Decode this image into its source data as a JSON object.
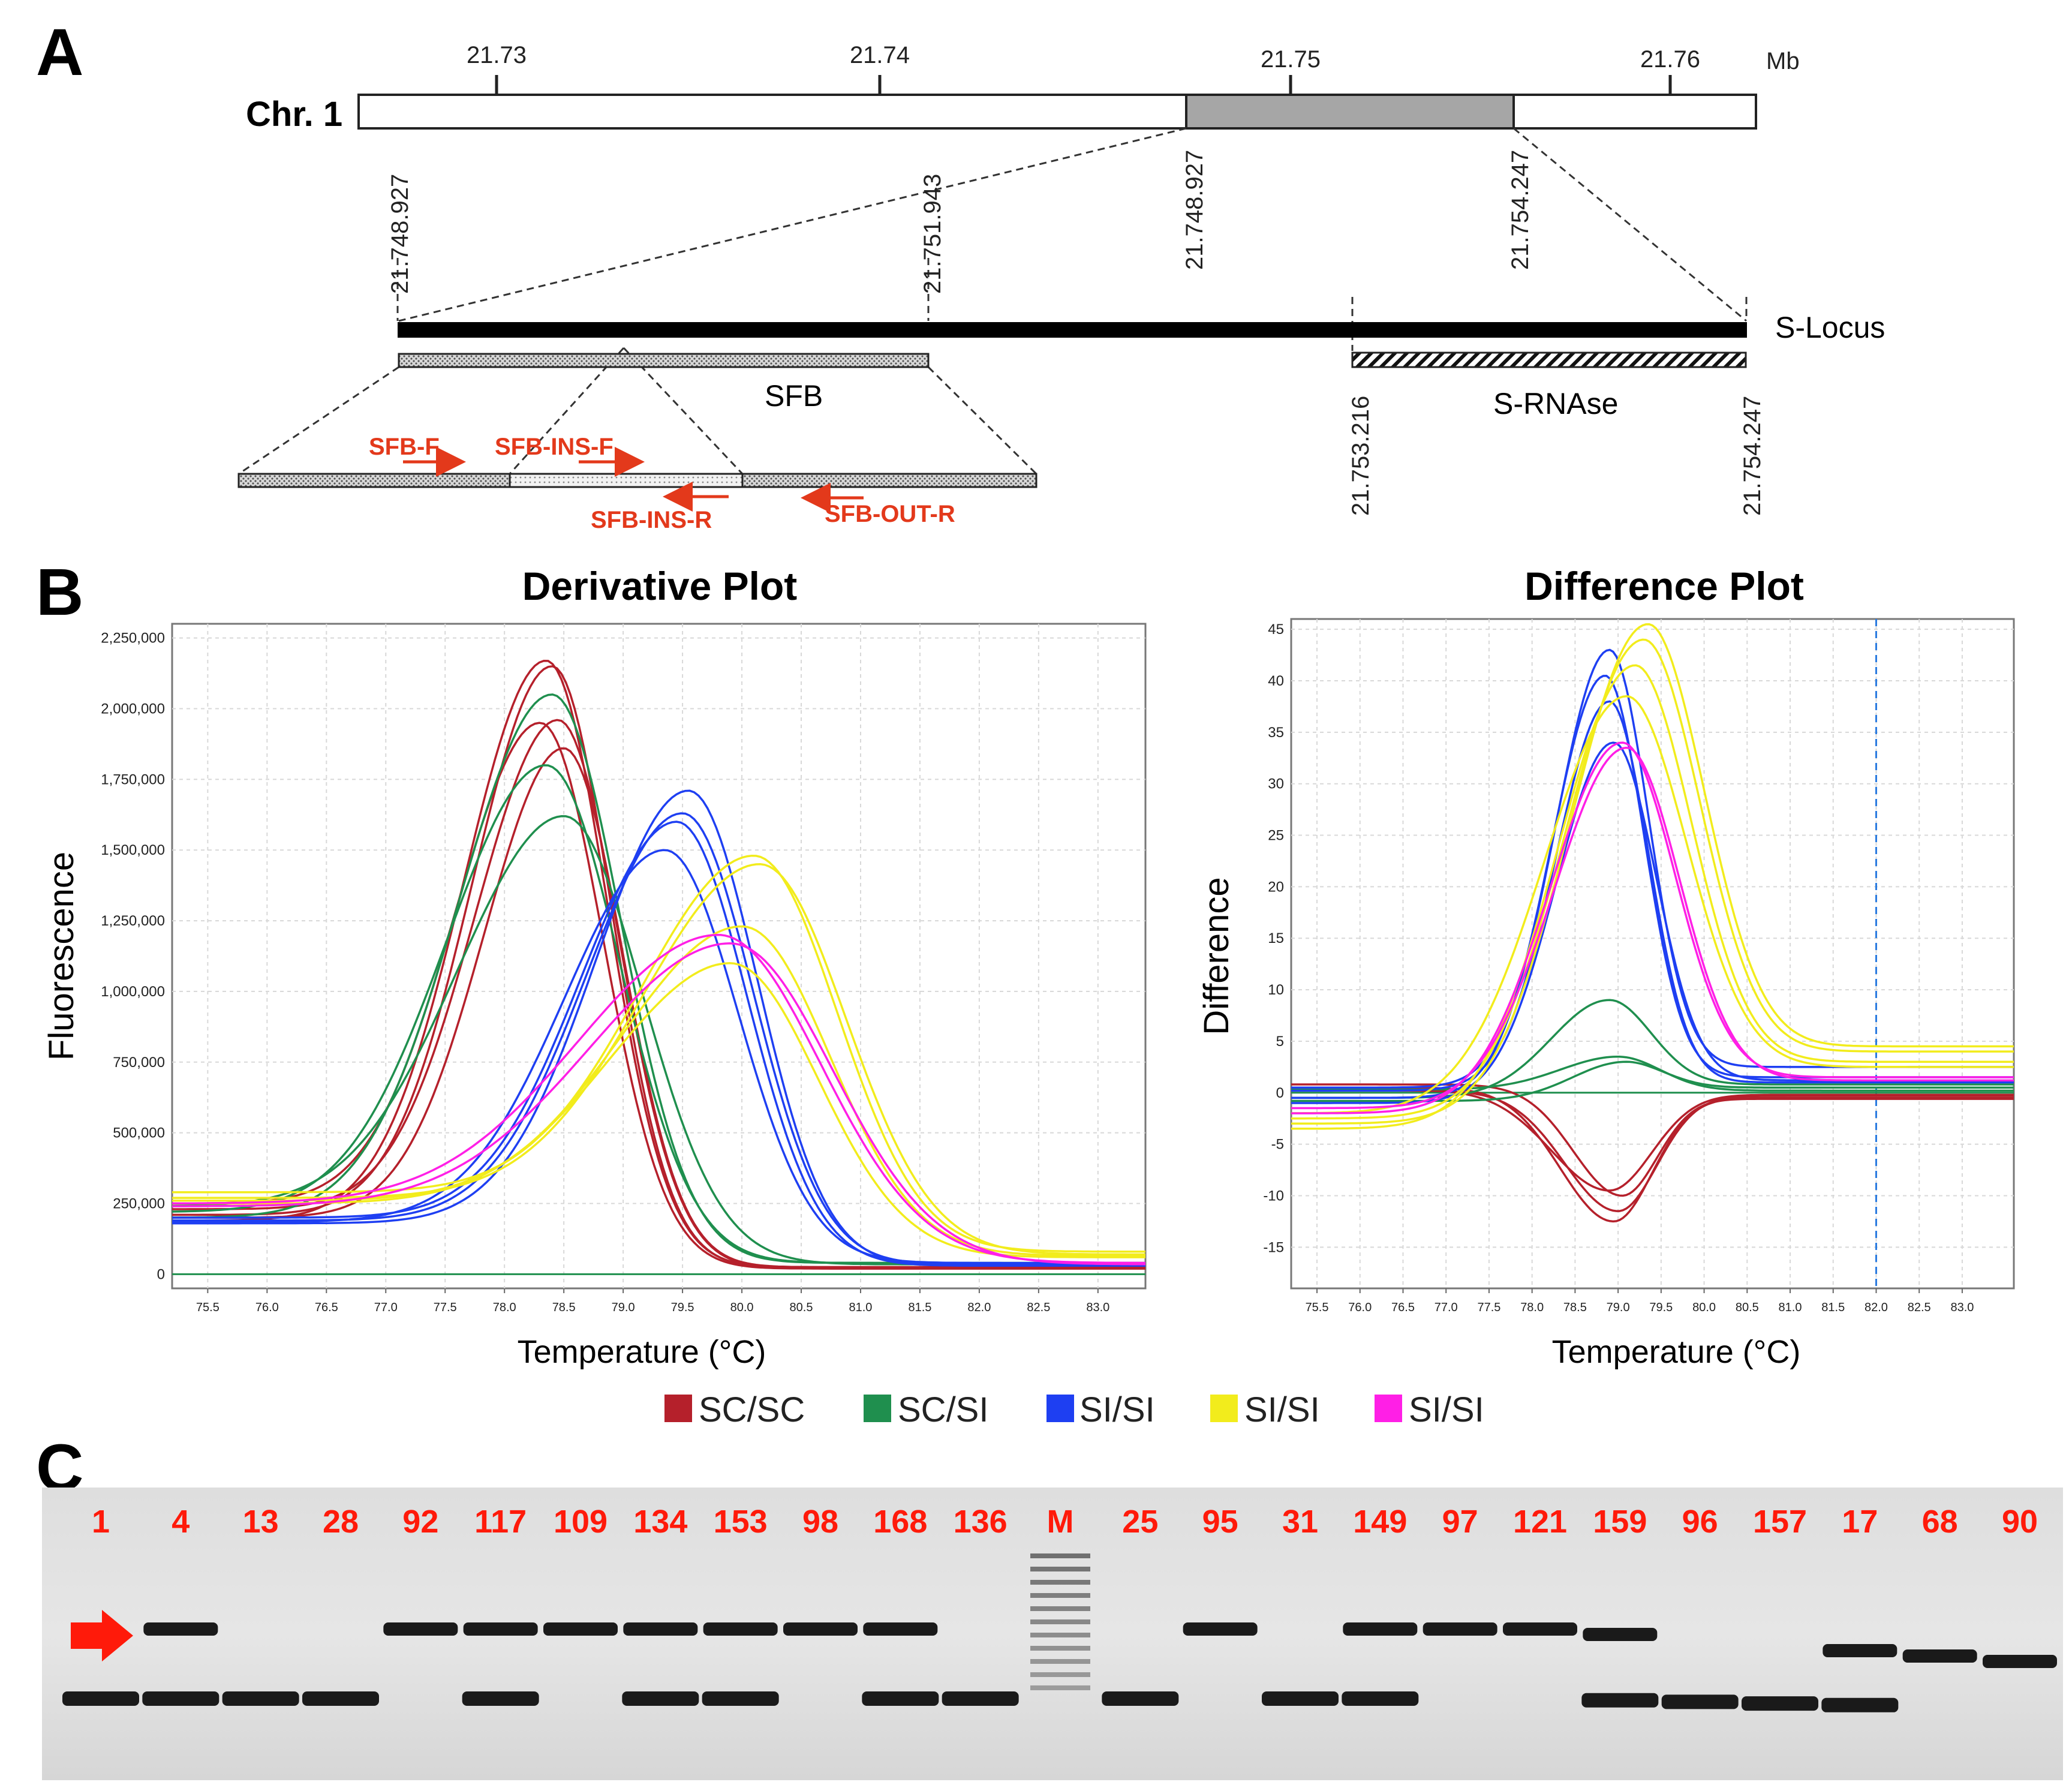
{
  "panel_a": {
    "letter": "A",
    "chromosome_label": "Chr. 1",
    "unit": "Mb",
    "ticks": [
      "21.73",
      "21.74",
      "21.75",
      "21.76"
    ],
    "region_start": "21.748.927",
    "region_end": "21.754.247",
    "locus_start": "21.748.927",
    "sfb_end": "21.751.943",
    "srnase_start": "21.753.216",
    "srnase_end": "21.754.247",
    "locus_label": "S-Locus",
    "sfb_label": "SFB",
    "srnase_label": "S-RNAse",
    "primers": [
      "SFB-F",
      "SFB-INS-F",
      "SFB-INS-R",
      "SFB-OUT-R"
    ]
  },
  "panel_b": {
    "letter": "B",
    "legend": [
      {
        "label": "SC/SC",
        "color": "#b5202b"
      },
      {
        "label": "SC/SI",
        "color": "#1f8f4e"
      },
      {
        "label": "SI/SI",
        "color": "#1e3ff2"
      },
      {
        "label": "SI/SI",
        "color": "#f2ec1c"
      },
      {
        "label": "SI/SI",
        "color": "#ff1fe6"
      }
    ]
  },
  "panel_c": {
    "letter": "C",
    "marker_color": "#ff1a0a",
    "lanes": [
      "1",
      "4",
      "13",
      "28",
      "92",
      "117",
      "109",
      "134",
      "153",
      "98",
      "168",
      "136",
      "M",
      "25",
      "95",
      "31",
      "149",
      "97",
      "121",
      "159",
      "96",
      "157",
      "17",
      "68",
      "90"
    ],
    "upper_band_lanes": [
      "4",
      "92",
      "117",
      "109",
      "134",
      "153",
      "98",
      "168",
      "95",
      "149",
      "97",
      "121",
      "159",
      "17",
      "68",
      "90"
    ],
    "lower_band_lanes": [
      "1",
      "4",
      "13",
      "28",
      "117",
      "134",
      "153",
      "168",
      "136",
      "25",
      "31",
      "149",
      "159",
      "96",
      "157",
      "17"
    ]
  },
  "chart_data": [
    {
      "type": "line",
      "title": "Derivative Plot",
      "xlabel": "Temperature (°C)",
      "ylabel": "Fluorescence",
      "xlim": [
        75.2,
        83.4
      ],
      "ylim": [
        -50000,
        2300000
      ],
      "x_ticks": [
        "75.5",
        "76.0",
        "76.5",
        "77.0",
        "77.5",
        "78.0",
        "78.5",
        "79.0",
        "79.5",
        "80.0",
        "80.5",
        "81.0",
        "81.5",
        "82.0",
        "82.5",
        "83.0"
      ],
      "y_ticks": [
        "0",
        "250,000",
        "500,000",
        "750,000",
        "1,000,000",
        "1,250,000",
        "1,500,000",
        "1,750,000",
        "2,000,000",
        "2,250,000"
      ],
      "series": [
        {
          "name": "SC/SC",
          "color": "#b5202b",
          "curves": [
            {
              "peak_x": 78.35,
              "peak_y": 2170000,
              "baseline": 190000,
              "width": 0.62,
              "tail": 25000
            },
            {
              "peak_x": 78.4,
              "peak_y": 2150000,
              "baseline": 210000,
              "width": 0.6,
              "tail": 25000
            },
            {
              "peak_x": 78.45,
              "peak_y": 1960000,
              "baseline": 230000,
              "width": 0.62,
              "tail": 20000
            },
            {
              "peak_x": 78.3,
              "peak_y": 1950000,
              "baseline": 250000,
              "width": 0.64,
              "tail": 20000
            },
            {
              "peak_x": 78.5,
              "peak_y": 1860000,
              "baseline": 200000,
              "width": 0.6,
              "tail": 25000
            }
          ]
        },
        {
          "name": "SC/SI",
          "color": "#1f8f4e",
          "curves": [
            {
              "peak_x": 78.4,
              "peak_y": 2050000,
              "baseline": 200000,
              "width": 0.7,
              "tail": 40000
            },
            {
              "peak_x": 78.35,
              "peak_y": 1800000,
              "baseline": 220000,
              "width": 0.75,
              "tail": 40000
            },
            {
              "peak_x": 78.5,
              "peak_y": 1620000,
              "baseline": 240000,
              "width": 0.8,
              "tail": 35000
            }
          ]
        },
        {
          "name": "SI/SI",
          "color": "#1e3ff2",
          "curves": [
            {
              "peak_x": 79.55,
              "peak_y": 1710000,
              "baseline": 180000,
              "width": 0.7,
              "tail": 30000
            },
            {
              "peak_x": 79.5,
              "peak_y": 1630000,
              "baseline": 190000,
              "width": 0.72,
              "tail": 35000
            },
            {
              "peak_x": 79.45,
              "peak_y": 1600000,
              "baseline": 200000,
              "width": 0.72,
              "tail": 30000
            },
            {
              "peak_x": 79.35,
              "peak_y": 1500000,
              "baseline": 185000,
              "width": 0.75,
              "tail": 40000
            }
          ]
        },
        {
          "name": "SI/SI",
          "color": "#f2ec1c",
          "curves": [
            {
              "peak_x": 80.1,
              "peak_y": 1480000,
              "baseline": 290000,
              "width": 0.85,
              "tail": 80000
            },
            {
              "peak_x": 80.15,
              "peak_y": 1450000,
              "baseline": 270000,
              "width": 0.88,
              "tail": 70000
            },
            {
              "peak_x": 80.0,
              "peak_y": 1230000,
              "baseline": 260000,
              "width": 0.9,
              "tail": 65000
            },
            {
              "peak_x": 79.9,
              "peak_y": 1100000,
              "baseline": 250000,
              "width": 0.9,
              "tail": 60000
            }
          ]
        },
        {
          "name": "SI/SI",
          "color": "#ff1fe6",
          "curves": [
            {
              "peak_x": 79.8,
              "peak_y": 1200000,
              "baseline": 250000,
              "width": 1.05,
              "tail": 40000
            },
            {
              "peak_x": 79.9,
              "peak_y": 1170000,
              "baseline": 240000,
              "width": 1.05,
              "tail": 35000
            }
          ]
        }
      ]
    },
    {
      "type": "line",
      "title": "Difference Plot",
      "xlabel": "Temperature (°C)",
      "ylabel": "Difference",
      "xlim": [
        75.2,
        83.6
      ],
      "ylim": [
        -19,
        46
      ],
      "reference_line_x": 82.0,
      "x_ticks": [
        "75.5",
        "76.0",
        "76.5",
        "77.0",
        "77.5",
        "78.0",
        "78.5",
        "79.0",
        "79.5",
        "80.0",
        "80.5",
        "81.0",
        "81.5",
        "82.0",
        "82.5",
        "83.0"
      ],
      "y_ticks": [
        "-15",
        "-10",
        "-5",
        "0",
        "5",
        "10",
        "15",
        "20",
        "25",
        "30",
        "35",
        "40",
        "45"
      ],
      "series": [
        {
          "name": "SC/SC",
          "color": "#b5202b",
          "curves": [
            {
              "peak_x": 78.95,
              "peak_y": -12.5,
              "baseline": 0.5,
              "width": 0.55,
              "tail": -0.5
            },
            {
              "peak_x": 79.0,
              "peak_y": -11.5,
              "baseline": 0.2,
              "width": 0.55,
              "tail": -0.3
            },
            {
              "peak_x": 79.05,
              "peak_y": -10.0,
              "baseline": 0.8,
              "width": 0.5,
              "tail": -0.6
            },
            {
              "peak_x": 78.9,
              "peak_y": -9.5,
              "baseline": 0.3,
              "width": 0.6,
              "tail": -0.2
            }
          ]
        },
        {
          "name": "SC/SI",
          "color": "#1f8f4e",
          "curves": [
            {
              "peak_x": 78.9,
              "peak_y": 9.0,
              "baseline": -0.5,
              "width": 0.6,
              "tail": 0.8
            },
            {
              "peak_x": 79.0,
              "peak_y": 3.5,
              "baseline": 0.3,
              "width": 0.6,
              "tail": 0.2
            },
            {
              "peak_x": 79.1,
              "peak_y": 3.0,
              "baseline": -0.8,
              "width": 0.55,
              "tail": 0.5
            }
          ]
        },
        {
          "name": "SI/SI",
          "color": "#1e3ff2",
          "curves": [
            {
              "peak_x": 78.9,
              "peak_y": 43.0,
              "baseline": 0.5,
              "width": 0.55,
              "tail": 2.5
            },
            {
              "peak_x": 78.85,
              "peak_y": 40.5,
              "baseline": -0.5,
              "width": 0.55,
              "tail": 1.5
            },
            {
              "peak_x": 78.9,
              "peak_y": 38.0,
              "baseline": 0.2,
              "width": 0.55,
              "tail": 1.0
            },
            {
              "peak_x": 78.95,
              "peak_y": 34.0,
              "baseline": -1.0,
              "width": 0.6,
              "tail": 1.2
            }
          ]
        },
        {
          "name": "SI/SI",
          "color": "#f2ec1c",
          "curves": [
            {
              "peak_x": 79.35,
              "peak_y": 45.5,
              "baseline": -3.0,
              "width": 0.8,
              "tail": 4.5
            },
            {
              "peak_x": 79.3,
              "peak_y": 44.0,
              "baseline": -2.5,
              "width": 0.8,
              "tail": 4.0
            },
            {
              "peak_x": 79.2,
              "peak_y": 41.5,
              "baseline": -3.5,
              "width": 0.8,
              "tail": 3.0
            },
            {
              "peak_x": 79.1,
              "peak_y": 38.5,
              "baseline": -2.0,
              "width": 0.85,
              "tail": 2.5
            }
          ]
        },
        {
          "name": "SI/SI",
          "color": "#ff1fe6",
          "curves": [
            {
              "peak_x": 79.05,
              "peak_y": 34.0,
              "baseline": -2.0,
              "width": 0.75,
              "tail": 1.5
            },
            {
              "peak_x": 79.1,
              "peak_y": 33.5,
              "baseline": -1.5,
              "width": 0.75,
              "tail": 1.2
            }
          ]
        }
      ]
    }
  ]
}
